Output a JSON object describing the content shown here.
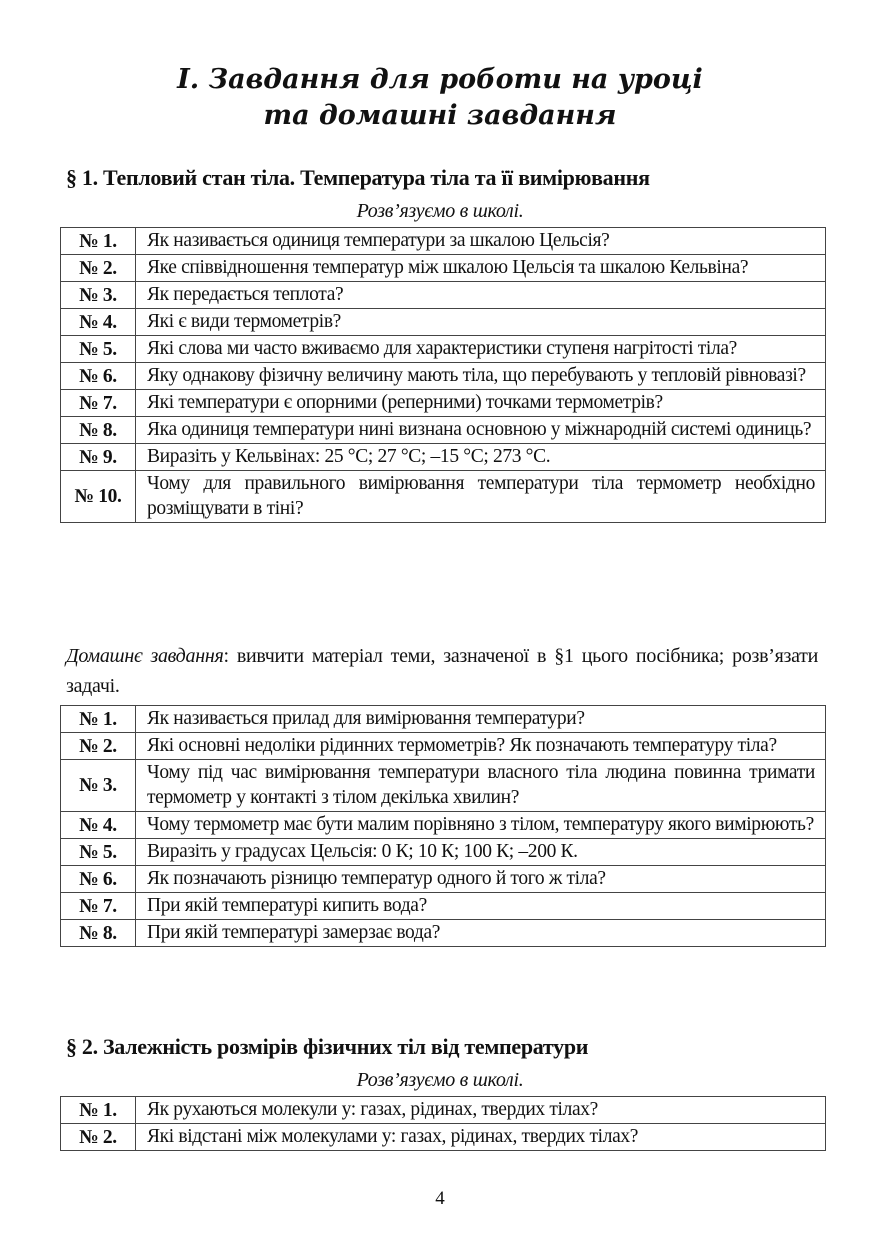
{
  "title": {
    "line1": "І. Завдання для роботи на уроці",
    "line2": "та  домашні завдання"
  },
  "section1": {
    "heading": "§ 1. Тепловий стан тіла. Температура тіла та її вимірювання",
    "subtitle": "Розв’язуємо в школі.",
    "school_tasks": [
      {
        "num": "№ 1.",
        "text": "Як називається одиниця температури за шкалою Цельсія?"
      },
      {
        "num": "№ 2.",
        "text": "Яке співвідношення температур між шкалою Цельсія та шкалою Кельвіна?"
      },
      {
        "num": "№ 3.",
        "text": "Як передається теплота?"
      },
      {
        "num": "№ 4.",
        "text": "Які є види термометрів?"
      },
      {
        "num": "№ 5.",
        "text": "Які слова ми часто вживаємо для характеристики ступеня нагрітості тіла?"
      },
      {
        "num": "№ 6.",
        "text": "Яку однакову фізичну величину мають тіла, що перебувають у тепловій рівновазі?"
      },
      {
        "num": "№ 7.",
        "text": "Які температури є опорними (реперними) точками термометрів?"
      },
      {
        "num": "№ 8.",
        "text": "Яка одиниця температури нині визнана основною у міжнародній системі одиниць?"
      },
      {
        "num": "№ 9.",
        "text": "Виразіть у Кельвінах: 25 °С; 27 °С; –15 °С; 273 °С."
      },
      {
        "num": "№ 10.",
        "text": "Чому для правильного вимірювання температури тіла термометр необхідно розміщувати в тіні?"
      }
    ],
    "homework_label": "Домашнє завдання",
    "homework_text": ": вивчити матеріал теми, зазначеної в §1 цього посібника; розв’язати задачі.",
    "home_tasks": [
      {
        "num": "№ 1.",
        "text": "Як називається прилад для вимірювання температури?"
      },
      {
        "num": "№ 2.",
        "text": "Які основні недоліки рідинних термометрів? Як позначають температуру тіла?"
      },
      {
        "num": "№ 3.",
        "text": "Чому під час вимірювання температури власного тіла людина повинна тримати термометр у контакті з тілом декілька хвилин?"
      },
      {
        "num": "№ 4.",
        "text": "Чому термометр має бути малим порівняно з тілом, температуру якого вимірюють?"
      },
      {
        "num": "№ 5.",
        "text": "Виразіть у градусах Цельсія: 0 К; 10 К; 100 К; –200 К."
      },
      {
        "num": "№ 6.",
        "text": "Як позначають різницю температур одного й того ж тіла?"
      },
      {
        "num": "№ 7.",
        "text": "При якій температурі кипить вода?"
      },
      {
        "num": "№ 8.",
        "text": "При якій температурі замерзає вода?"
      }
    ]
  },
  "section2": {
    "heading": "§ 2. Залежність розмірів фізичних тіл від температури",
    "subtitle": "Розв’язуємо в школі.",
    "school_tasks": [
      {
        "num": "№ 1.",
        "text": "Як рухаються молекули у: газах, рідинах, твердих тілах?"
      },
      {
        "num": "№ 2.",
        "text": "Які відстані між молекулами у: газах, рідинах, твердих тілах?"
      }
    ]
  },
  "page_number": "4"
}
